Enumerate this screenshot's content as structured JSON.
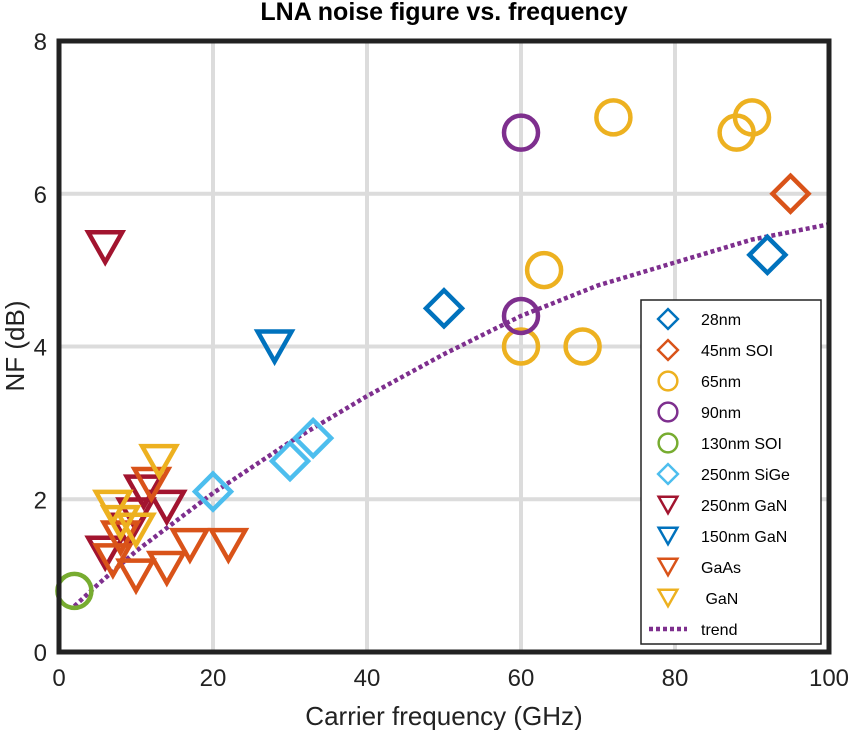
{
  "chart_data": {
    "type": "scatter",
    "title": "LNA noise figure vs. frequency",
    "xlabel": "Carrier frequency (GHz)",
    "ylabel": "NF (dB)",
    "xlim": [
      0,
      100
    ],
    "ylim": [
      0,
      8
    ],
    "xticks": [
      0,
      20,
      40,
      60,
      80,
      100
    ],
    "yticks": [
      0,
      2,
      4,
      6,
      8
    ],
    "grid": true,
    "legend_position": "lower-right",
    "series": [
      {
        "name": "28nm",
        "marker": "diamond",
        "color": "#0072BD",
        "x": [
          50,
          92
        ],
        "y": [
          4.5,
          5.2
        ]
      },
      {
        "name": "45nm SOI",
        "marker": "diamond",
        "color": "#D95319",
        "x": [
          95
        ],
        "y": [
          6.0
        ]
      },
      {
        "name": "65nm",
        "marker": "circle",
        "color": "#EDB120",
        "x": [
          60,
          63,
          68,
          72,
          88,
          90
        ],
        "y": [
          4.0,
          5.0,
          4.0,
          7.0,
          6.8,
          7.0
        ]
      },
      {
        "name": "90nm",
        "marker": "circle",
        "color": "#7E2F8E",
        "x": [
          60,
          60
        ],
        "y": [
          6.8,
          4.4
        ]
      },
      {
        "name": "130nm SOI",
        "marker": "circle",
        "color": "#77AC30",
        "x": [
          2
        ],
        "y": [
          0.8
        ]
      },
      {
        "name": "250nm SiGe",
        "marker": "diamond",
        "color": "#4DBEEE",
        "x": [
          20,
          30,
          33
        ],
        "y": [
          2.1,
          2.5,
          2.8
        ]
      },
      {
        "name": "250nm GaN",
        "marker": "triangle-down",
        "color": "#A2142F",
        "x": [
          6,
          6,
          9,
          10,
          11,
          14
        ],
        "y": [
          5.3,
          1.3,
          1.6,
          1.8,
          2.1,
          1.9
        ]
      },
      {
        "name": "150nm GaN",
        "marker": "triangle-down",
        "color": "#0072BD",
        "x": [
          28
        ],
        "y": [
          4.0
        ]
      },
      {
        "name": "GaAs",
        "marker": "triangle-down",
        "color": "#D95319",
        "x": [
          7,
          8,
          10,
          12,
          14,
          17,
          22
        ],
        "y": [
          1.2,
          1.5,
          1.0,
          2.2,
          1.1,
          1.4,
          1.4
        ]
      },
      {
        "name": " GaN",
        "marker": "triangle-down",
        "color": "#EDB120",
        "x": [
          7,
          8,
          10,
          13
        ],
        "y": [
          1.9,
          1.7,
          1.6,
          2.5
        ]
      },
      {
        "name": "trend",
        "marker": "dotted-line",
        "color": "#7E2F8E",
        "x": [
          2,
          5,
          10,
          20,
          30,
          40,
          50,
          60,
          70,
          80,
          90,
          100
        ],
        "y": [
          0.6,
          0.88,
          1.32,
          2.08,
          2.75,
          3.35,
          3.9,
          4.4,
          4.8,
          5.1,
          5.4,
          5.6
        ]
      }
    ]
  }
}
